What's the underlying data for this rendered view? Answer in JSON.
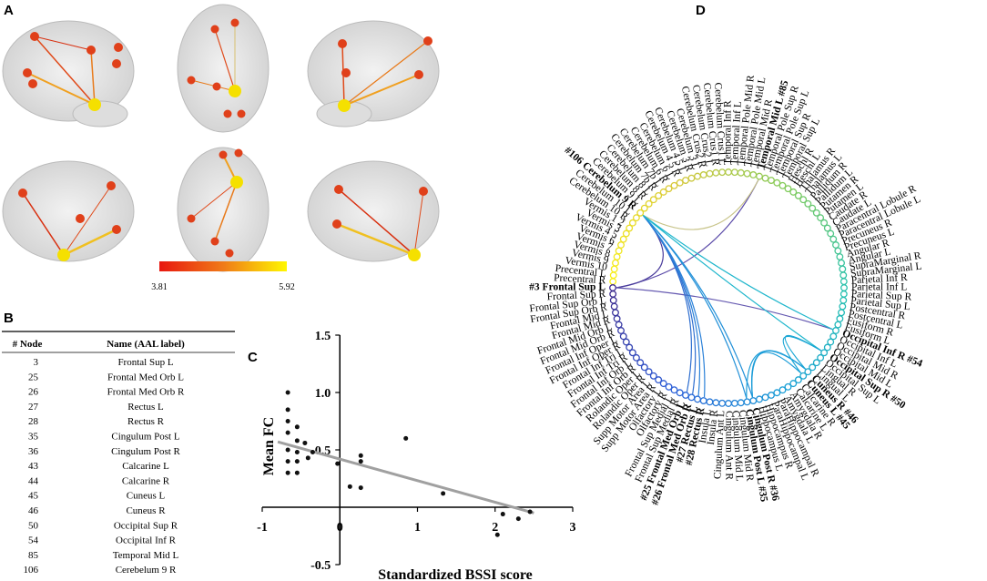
{
  "panel_labels": [
    "A",
    "B",
    "C",
    "D"
  ],
  "colorbar": {
    "min_label": "3.81",
    "max_label": "5.92",
    "colors": [
      "#e8170f",
      "#f07a18",
      "#fff700"
    ]
  },
  "table": {
    "header": [
      "# Node",
      "Name (AAL label)"
    ],
    "rows": [
      [
        "3",
        "Frontal Sup L"
      ],
      [
        "25",
        "Frontal Med Orb L"
      ],
      [
        "26",
        "Frontal Med Orb R"
      ],
      [
        "27",
        "Rectus L"
      ],
      [
        "28",
        "Rectus R"
      ],
      [
        "35",
        "Cingulum Post L"
      ],
      [
        "36",
        "Cingulum Post R"
      ],
      [
        "43",
        "Calcarine L"
      ],
      [
        "44",
        "Calcarine R"
      ],
      [
        "45",
        "Cuneus L"
      ],
      [
        "46",
        "Cuneus R"
      ],
      [
        "50",
        "Occipital Sup R"
      ],
      [
        "54",
        "Occipital Inf R"
      ],
      [
        "85",
        "Temporal Mid L"
      ],
      [
        "106",
        "Cerebelum 9 R"
      ]
    ]
  },
  "chart_data": {
    "type": "scatter",
    "x_label": "Standardized BSSI score",
    "y_label": "Mean FC",
    "x": [
      -0.67,
      -0.67,
      -0.67,
      -0.67,
      -0.67,
      -0.67,
      -0.67,
      -0.55,
      -0.55,
      -0.55,
      -0.55,
      -0.55,
      -0.45,
      -0.35,
      -0.41,
      -0.03,
      0.13,
      0.27,
      0.27,
      0.27,
      0.85,
      1.33,
      2.1,
      2.03,
      2.3,
      2.45
    ],
    "values": [
      1.0,
      0.85,
      0.75,
      0.65,
      0.5,
      0.4,
      0.3,
      0.7,
      0.58,
      0.48,
      0.4,
      0.3,
      0.56,
      0.48,
      0.43,
      0.38,
      0.18,
      0.17,
      0.45,
      0.4,
      0.6,
      0.12,
      -0.06,
      -0.24,
      -0.1,
      -0.04
    ],
    "color": "#111111",
    "trend_line": {
      "x": [
        -0.8,
        2.5
      ],
      "y": [
        0.57,
        -0.05
      ],
      "color": "#a0a0a0"
    },
    "xlim": [
      -1,
      3
    ],
    "ylim": [
      -0.5,
      1.5
    ],
    "xticks": [
      -1,
      0,
      1,
      2,
      3
    ],
    "yticks": [
      -0.5,
      0.5,
      {
        "value": 1,
        "label": "1.0"
      },
      1.5
    ]
  },
  "chord": {
    "labels": [
      "Precentral L",
      "Precentral R",
      "#3 Frontal Sup L",
      "Frontal Sup R",
      "Frontal Sup Orb L",
      "Frontal Sup Orb R",
      "Frontal Mid L",
      "Frontal Mid R",
      "Frontal Mid Orb L",
      "Frontal Mid Orb R",
      "Frontal Inf Oper L",
      "Frontal Inf Oper R",
      "Frontal Inf Tri L",
      "Frontal Inf Tri R",
      "Frontal Inf Orb L",
      "Frontal Inf Orb R",
      "Rolandic Oper L",
      "Rolandic Oper R",
      "Supp Motor Area L",
      "Supp Motor Area R",
      "Olfactory L",
      "Olfactory R",
      "Frontal Sup Medial L",
      "Frontal Sup Medial R",
      "#25 Frontal Med Orb L",
      "#26 Frontal Med Orb R",
      "#27 Rectus L",
      "#28 Rectus R",
      "Insula L",
      "Insula R",
      "Cingulum Ant L",
      "Cingulum Ant R",
      "Cingulum Mid L",
      "Cingulum Mid R",
      "Cingulum Post L #35",
      "Cingulum Post R #36",
      "Hippocampus L",
      "Hippocampus R",
      "ParaHippocampal L",
      "ParaHippocampal R",
      "Amygdala L",
      "Amygdala R",
      "Calcarine L",
      "Calcarine R",
      "Cuneus L #45",
      "Cuneus R #46",
      "Lingual L",
      "Lingual R",
      "Occipital Sup L",
      "Occipital Sup R #50",
      "Occipital Mid L",
      "Occipital Mid R",
      "Occipital Inf L",
      "Occipital Inf R #54",
      "Fusiform L",
      "Fusiform R",
      "Postcentral L",
      "Postcentral R",
      "Parietal Sup L",
      "Parietal Sup R",
      "Parietal Inf L",
      "Parietal Inf R",
      "SupraMarginal L",
      "SupraMarginal R",
      "Angular L",
      "Angular R",
      "Precuneus L",
      "Precuneus R",
      "Paracentral Lobule L",
      "Paracentral Lobule R",
      "Caudate L",
      "Caudate R",
      "Putamen L",
      "Putamen R",
      "Pallidum L",
      "Pallidum R",
      "Thalamus L",
      "Thalamus R",
      "Heschl L",
      "Heschl R",
      "Temporal Sup L",
      "Temporal Sup R",
      "Temporal Pole Sup L",
      "Temporal Pole Sup R",
      "Temporal Mid L #85",
      "Temporal Mid R",
      "Temporal Pole Mid L",
      "Temporal Pole Mid R",
      "Temporal Inf L",
      "Temporal Inf R",
      "Cerebelum Crus1 L",
      "Cerebelum Crus1 R",
      "Cerebelum Crus2 L",
      "Cerebelum Crus2 R",
      "Cerebelum 3 L",
      "Cerebelum 3 R",
      "Cerebelum 4 5 L",
      "Cerebelum 4 5 R",
      "Cerebelum 6 L",
      "Cerebelum 6 R",
      "Cerebelum 7b L",
      "Cerebelum 7b R",
      "Cerebelum 8 L",
      "Cerebelum 8 R",
      "Cerebelum 9 L",
      "#106 Cerebelum 9 R",
      "Cerebelum 10 L",
      "Cerebelum 10 R",
      "Vermis 1 2",
      "Vermis 3",
      "Vermis 4 5",
      "Vermis 6",
      "Vermis 7",
      "Vermis 8",
      "Vermis 9",
      "Vermis 10"
    ],
    "bold": [
      3,
      25,
      26,
      27,
      28,
      35,
      36,
      45,
      46,
      50,
      54,
      85,
      106
    ],
    "colormap": [
      "#3e2a8c",
      "#2f5fd8",
      "#1a9fd6",
      "#25c1b0",
      "#7fcb5d",
      "#d8c83a",
      "#f9f013"
    ],
    "edges": [
      [
        3,
        85
      ],
      [
        3,
        106
      ],
      [
        3,
        54
      ],
      [
        85,
        106
      ],
      [
        106,
        25
      ],
      [
        106,
        26
      ],
      [
        106,
        27
      ],
      [
        106,
        28
      ],
      [
        106,
        35
      ],
      [
        106,
        36
      ],
      [
        106,
        50
      ],
      [
        106,
        54
      ],
      [
        36,
        45
      ],
      [
        36,
        46
      ],
      [
        35,
        46
      ],
      [
        45,
        50
      ],
      [
        46,
        50
      ]
    ],
    "edge_colors": [
      "#5a4aa8",
      "#4a3c9c",
      "#6458b0",
      "#c8c48a",
      "#2f6fd0",
      "#2f6fd0",
      "#2a80d8",
      "#2a80d8",
      "#2290d8",
      "#2290d8",
      "#1fb6cc",
      "#1fb6cc",
      "#1a9cd8",
      "#1a9cd8",
      "#1a9cd8",
      "#1aa6d4",
      "#1aa6d4"
    ]
  }
}
